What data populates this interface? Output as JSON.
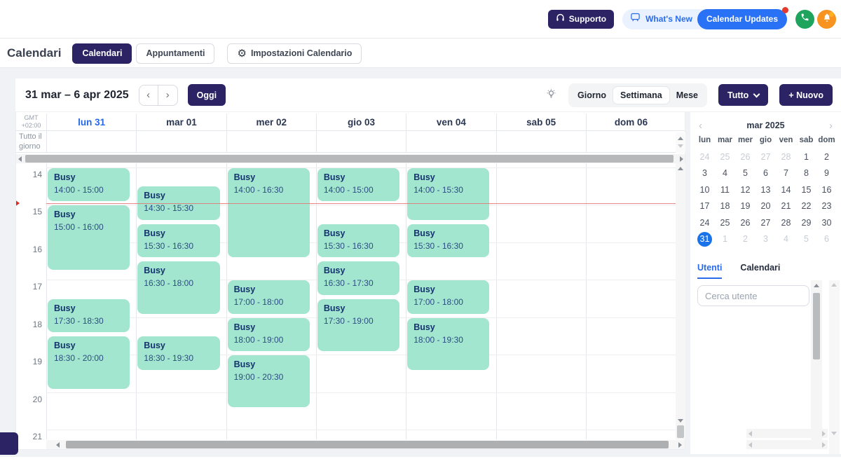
{
  "topbar": {
    "supporto": "Supporto",
    "whats_new": "What's New",
    "calendar_updates": "Calendar Updates"
  },
  "page": {
    "title": "Calendari"
  },
  "nav_tabs": {
    "calendari": "Calendari",
    "appuntamenti": "Appuntamenti",
    "impostazioni": "Impostazioni Calendario"
  },
  "toolbar": {
    "date_range": "31 mar – 6 apr 2025",
    "today_label": "Oggi",
    "views": [
      "Giorno",
      "Settimana",
      "Mese"
    ],
    "active_view": "Settimana",
    "filter_label": "Tutto",
    "new_label": "+ Nuovo"
  },
  "icons": {
    "chevron_left": "‹",
    "chevron_right": "›",
    "gear": "⚙"
  },
  "week": {
    "timezone": [
      "GMT",
      "+02:00"
    ],
    "allday_label_lines": [
      "Tutto il",
      "giorno"
    ],
    "day_headers": [
      {
        "label": "lun 31",
        "today": true
      },
      {
        "label": "mar 01"
      },
      {
        "label": "mer 02"
      },
      {
        "label": "gio 03"
      },
      {
        "label": "ven 04"
      },
      {
        "label": "sab 05"
      },
      {
        "label": "dom 06"
      }
    ],
    "hours": [
      14,
      15,
      16,
      17,
      18,
      19,
      20,
      21
    ],
    "now_time": "14:58",
    "time_separator": " - ",
    "events": [
      {
        "day": 0,
        "title": "Busy",
        "start": "14:00",
        "end": "15:00"
      },
      {
        "day": 0,
        "title": "Busy",
        "start": "15:00",
        "end": "16:00",
        "display_span_min": 110
      },
      {
        "day": 0,
        "title": "Busy",
        "start": "17:30",
        "end": "18:30"
      },
      {
        "day": 0,
        "title": "Busy",
        "start": "18:30",
        "end": "20:00"
      },
      {
        "day": 1,
        "title": "Busy",
        "start": "14:30",
        "end": "15:30"
      },
      {
        "day": 1,
        "title": "Busy",
        "start": "15:30",
        "end": "16:30"
      },
      {
        "day": 1,
        "title": "Busy",
        "start": "16:30",
        "end": "18:00"
      },
      {
        "day": 1,
        "title": "Busy",
        "start": "18:30",
        "end": "19:30"
      },
      {
        "day": 2,
        "title": "Busy",
        "start": "14:00",
        "end": "16:30"
      },
      {
        "day": 2,
        "title": "Busy",
        "start": "17:00",
        "end": "18:00"
      },
      {
        "day": 2,
        "title": "Busy",
        "start": "18:00",
        "end": "19:00"
      },
      {
        "day": 2,
        "title": "Busy",
        "start": "19:00",
        "end": "20:30"
      },
      {
        "day": 3,
        "title": "Busy",
        "start": "14:00",
        "end": "15:00"
      },
      {
        "day": 3,
        "title": "Busy",
        "start": "15:30",
        "end": "16:30"
      },
      {
        "day": 3,
        "title": "Busy",
        "start": "16:30",
        "end": "17:30"
      },
      {
        "day": 3,
        "title": "Busy",
        "start": "17:30",
        "end": "19:00"
      },
      {
        "day": 4,
        "title": "Busy",
        "start": "14:00",
        "end": "15:30"
      },
      {
        "day": 4,
        "title": "Busy",
        "start": "15:30",
        "end": "16:30"
      },
      {
        "day": 4,
        "title": "Busy",
        "start": "17:00",
        "end": "18:00"
      },
      {
        "day": 4,
        "title": "Busy",
        "start": "18:00",
        "end": "19:30"
      }
    ]
  },
  "sidebar": {
    "mini_calendar": {
      "title": "mar 2025",
      "dow": [
        "lun",
        "mar",
        "mer",
        "gio",
        "ven",
        "sab",
        "dom"
      ],
      "weeks": [
        [
          {
            "d": "24",
            "muted": true
          },
          {
            "d": "25",
            "muted": true
          },
          {
            "d": "26",
            "muted": true
          },
          {
            "d": "27",
            "muted": true
          },
          {
            "d": "28",
            "muted": true
          },
          {
            "d": "1"
          },
          {
            "d": "2"
          }
        ],
        [
          {
            "d": "3"
          },
          {
            "d": "4"
          },
          {
            "d": "5"
          },
          {
            "d": "6"
          },
          {
            "d": "7"
          },
          {
            "d": "8"
          },
          {
            "d": "9"
          }
        ],
        [
          {
            "d": "10"
          },
          {
            "d": "11"
          },
          {
            "d": "12"
          },
          {
            "d": "13"
          },
          {
            "d": "14"
          },
          {
            "d": "15"
          },
          {
            "d": "16"
          }
        ],
        [
          {
            "d": "17"
          },
          {
            "d": "18"
          },
          {
            "d": "19"
          },
          {
            "d": "20"
          },
          {
            "d": "21"
          },
          {
            "d": "22"
          },
          {
            "d": "23"
          }
        ],
        [
          {
            "d": "24"
          },
          {
            "d": "25"
          },
          {
            "d": "26"
          },
          {
            "d": "27"
          },
          {
            "d": "28"
          },
          {
            "d": "29"
          },
          {
            "d": "30"
          }
        ],
        [
          {
            "d": "31",
            "selected": true
          },
          {
            "d": "1",
            "muted": true
          },
          {
            "d": "2",
            "muted": true
          },
          {
            "d": "3",
            "muted": true
          },
          {
            "d": "4",
            "muted": true
          },
          {
            "d": "5",
            "muted": true
          },
          {
            "d": "6",
            "muted": true
          }
        ]
      ]
    },
    "tabs": [
      {
        "label": "Utenti",
        "active": true
      },
      {
        "label": "Calendari"
      }
    ],
    "search_placeholder": "Cerca utente"
  },
  "colors": {
    "primary": "#2b2364",
    "link_blue": "#2a6cea",
    "today_blue": "#2468e5",
    "minical_selected": "#1a73e8",
    "event_bg": "#a3e6cf",
    "event_text": "#14336e",
    "now_line": "#e57373",
    "updates_pill": "#2a72f5",
    "phone_green": "#1ea45c",
    "bell_orange": "#f7931e"
  }
}
